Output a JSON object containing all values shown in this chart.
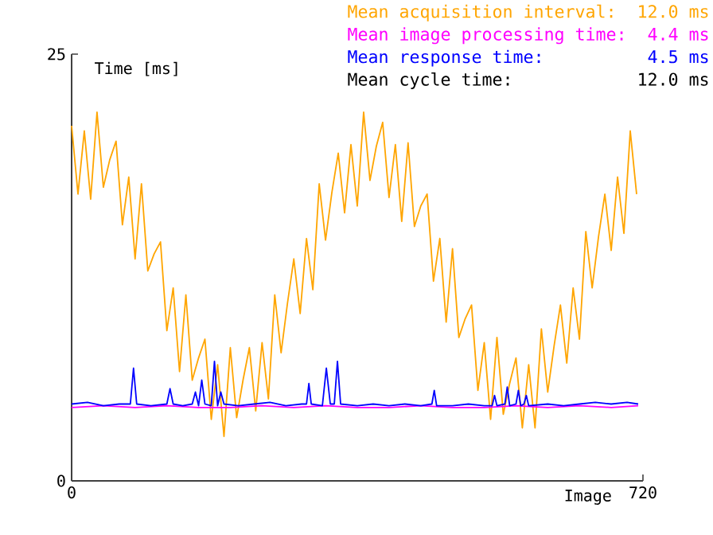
{
  "chart_data": {
    "type": "line",
    "xlabel": "Image",
    "ylabel": "Time [ms]",
    "xlim": [
      0,
      720
    ],
    "ylim": [
      0,
      25
    ],
    "xticks": [
      0,
      720
    ],
    "yticks": [
      0,
      25
    ],
    "legend": "top right",
    "marker": "none",
    "line_style": "solid",
    "annotations": [
      "12.0 ms",
      "4.4 ms",
      "4.5 ms",
      "Mean cycle time:",
      "12.0 ms"
    ],
    "series": [
      {
        "name": "Mean acquisition interval:",
        "color": "#ffa500",
        "x": [
          0,
          8,
          16,
          24,
          32,
          40,
          48,
          56,
          64,
          72,
          80,
          88,
          96,
          104,
          112,
          120,
          128,
          136,
          144,
          152,
          160,
          168,
          176,
          184,
          192,
          200,
          208,
          216,
          224,
          232,
          240,
          248,
          256,
          264,
          272,
          280,
          288,
          296,
          304,
          312,
          320,
          328,
          336,
          344,
          352,
          360,
          368,
          376,
          384,
          392,
          400,
          408,
          416,
          424,
          432,
          440,
          448,
          456,
          464,
          472,
          480,
          488,
          496,
          504,
          512,
          520,
          528,
          536,
          544,
          552,
          560,
          568,
          576,
          584,
          592,
          600,
          608,
          616,
          624,
          632,
          640,
          648,
          656,
          664,
          672,
          680,
          688,
          696,
          704,
          712
        ],
        "values": [
          20.8,
          16.8,
          20.5,
          16.5,
          21.6,
          17.2,
          18.8,
          19.9,
          15.0,
          17.8,
          13.0,
          17.4,
          12.3,
          13.3,
          14.0,
          8.8,
          11.3,
          6.4,
          10.9,
          5.9,
          7.2,
          8.3,
          3.6,
          6.8,
          2.6,
          7.8,
          3.7,
          5.9,
          7.8,
          4.1,
          8.1,
          4.8,
          10.9,
          7.5,
          10.4,
          13.0,
          9.8,
          14.2,
          11.2,
          17.4,
          14.1,
          16.9,
          19.2,
          15.7,
          19.7,
          16.1,
          21.6,
          17.6,
          19.6,
          21.0,
          16.6,
          19.7,
          15.2,
          19.8,
          14.9,
          16.1,
          16.8,
          11.7,
          14.2,
          9.3,
          13.6,
          8.4,
          9.5,
          10.3,
          5.3,
          8.1,
          3.6,
          8.4,
          3.9,
          5.7,
          7.2,
          3.1,
          6.8,
          3.1,
          8.9,
          5.2,
          7.9,
          10.3,
          6.9,
          11.3,
          8.3,
          14.6,
          11.3,
          14.3,
          16.8,
          13.5,
          17.8,
          14.5,
          20.5,
          16.8
        ]
      },
      {
        "name": "Mean image processing time:",
        "color": "#ff00ff",
        "x": [
          0,
          40,
          80,
          120,
          160,
          200,
          240,
          280,
          320,
          360,
          400,
          440,
          480,
          520,
          560,
          600,
          640,
          680,
          714
        ],
        "values": [
          4.3,
          4.4,
          4.3,
          4.4,
          4.3,
          4.3,
          4.4,
          4.3,
          4.4,
          4.3,
          4.3,
          4.4,
          4.3,
          4.3,
          4.4,
          4.3,
          4.4,
          4.3,
          4.4
        ]
      },
      {
        "name": "Mean response time:",
        "color": "#0000ff",
        "x": [
          0,
          20,
          40,
          60,
          74,
          78,
          82,
          100,
          120,
          124,
          128,
          140,
          152,
          156,
          160,
          164,
          168,
          176,
          180,
          184,
          188,
          192,
          210,
          230,
          250,
          270,
          290,
          296,
          299,
          302,
          316,
          321,
          326,
          331,
          335,
          339,
          360,
          380,
          400,
          420,
          440,
          454,
          457,
          460,
          480,
          500,
          520,
          530,
          533,
          536,
          546,
          549,
          552,
          560,
          563,
          566,
          570,
          573,
          576,
          600,
          620,
          640,
          660,
          680,
          700,
          714
        ],
        "values": [
          4.5,
          4.6,
          4.4,
          4.5,
          4.5,
          6.6,
          4.5,
          4.4,
          4.5,
          5.4,
          4.5,
          4.4,
          4.5,
          5.2,
          4.4,
          5.9,
          4.5,
          4.4,
          7.0,
          4.4,
          5.2,
          4.5,
          4.4,
          4.5,
          4.6,
          4.4,
          4.5,
          4.5,
          5.7,
          4.5,
          4.4,
          6.6,
          4.5,
          4.5,
          7.0,
          4.5,
          4.4,
          4.5,
          4.4,
          4.5,
          4.4,
          4.5,
          5.3,
          4.4,
          4.4,
          4.5,
          4.4,
          4.4,
          5.0,
          4.4,
          4.5,
          5.5,
          4.4,
          4.5,
          5.3,
          4.4,
          4.5,
          5.0,
          4.4,
          4.5,
          4.4,
          4.5,
          4.6,
          4.5,
          4.6,
          4.5
        ]
      }
    ]
  }
}
